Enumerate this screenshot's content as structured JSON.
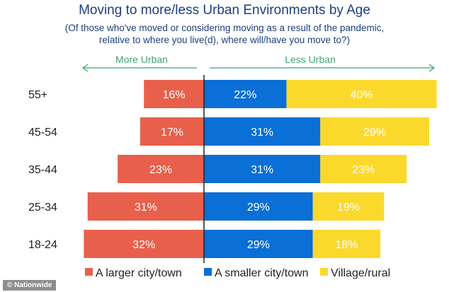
{
  "chart_data": {
    "type": "bar",
    "orientation": "horizontal-diverging",
    "stacked": true,
    "title": "Moving to more/less Urban Environments by Age",
    "subtitle_lines": [
      "(Of those who've moved or considering moving as a result of the pandemic,",
      "relative to where you live(d), where will/have you move to?)"
    ],
    "direction_labels": {
      "left": "More Urban",
      "right": "Less Urban"
    },
    "categories": [
      "55+",
      "45-54",
      "35-44",
      "25-34",
      "18-24"
    ],
    "series": [
      {
        "name": "A larger city/town",
        "color": "#e8604c",
        "side": "left",
        "values": [
          16,
          17,
          23,
          31,
          32
        ]
      },
      {
        "name": "A smaller city/town",
        "color": "#0a6fd6",
        "side": "right",
        "values": [
          22,
          31,
          31,
          29,
          29
        ]
      },
      {
        "name": "Village/rural",
        "color": "#fbd92c",
        "side": "right",
        "values": [
          40,
          29,
          23,
          19,
          18
        ]
      }
    ],
    "value_format": "percent",
    "legend": "bottom",
    "grid": false,
    "accent_color": "#3ea86a"
  },
  "credit": "© Nationwide"
}
